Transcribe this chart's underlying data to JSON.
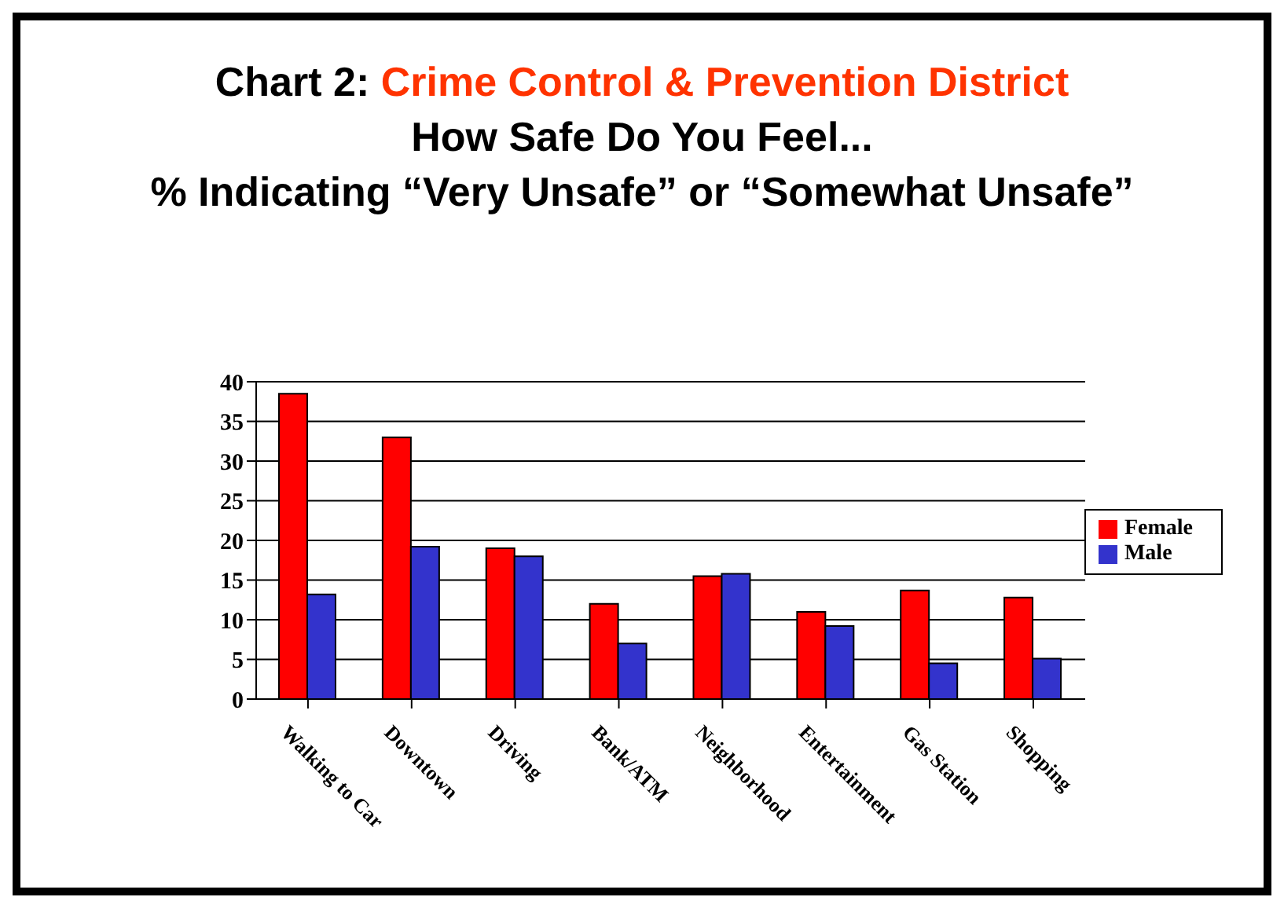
{
  "chart_data": {
    "type": "bar",
    "title": "Chart 2: Crime Control & Prevention District",
    "subtitle": "How Safe Do You Feel...\n% Indicating “Very Unsafe” or “Somewhat Unsafe”",
    "categories": [
      "Walking to Car",
      "Downtown",
      "Driving",
      "Bank/ATM",
      "Neighborhood",
      "Entertainment",
      "Gas Station",
      "Shopping"
    ],
    "series": [
      {
        "name": "Female",
        "color": "#ff0000",
        "values": [
          38.5,
          33,
          19,
          12,
          15.5,
          11,
          13.7,
          12.8
        ]
      },
      {
        "name": "Male",
        "color": "#3333cc",
        "values": [
          13.2,
          19.2,
          18,
          7,
          15.8,
          9.2,
          4.5,
          5.1
        ]
      }
    ],
    "ylim": [
      0,
      40
    ],
    "yticks": [
      0,
      5,
      10,
      15,
      20,
      25,
      30,
      35,
      40
    ],
    "grid": "y",
    "legend": "right"
  }
}
